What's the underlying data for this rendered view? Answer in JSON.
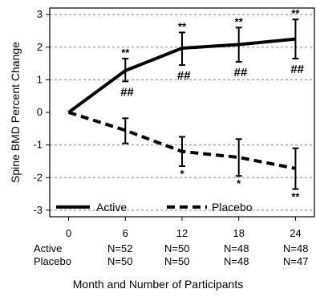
{
  "chart_data": {
    "type": "line",
    "ylabel": "Spine BMD Percent Change",
    "xlabel": "Month and Number of Participants",
    "x": [
      0,
      6,
      12,
      18,
      24
    ],
    "xticks": [
      "0",
      "6",
      "12",
      "18",
      "24"
    ],
    "yticks": [
      "3",
      "2",
      "1",
      "0",
      "-1",
      "-2",
      "-3"
    ],
    "ylim": [
      -3,
      3
    ],
    "grid": "horizontal dashed",
    "legend_position": "bottom",
    "series": [
      {
        "name": "Active",
        "style": "solid",
        "color": "#000000",
        "values": [
          0,
          1.28,
          1.97,
          2.08,
          2.25
        ],
        "err_low": [
          null,
          0.95,
          1.45,
          1.55,
          1.65
        ],
        "err_high": [
          null,
          1.65,
          2.45,
          2.6,
          2.85
        ],
        "sig_star": [
          null,
          "**",
          "**",
          "**",
          "**"
        ],
        "sig_hash": [
          null,
          "##",
          "##",
          "##",
          "##"
        ]
      },
      {
        "name": "Placebo",
        "style": "dashed",
        "color": "#000000",
        "values": [
          0,
          -0.55,
          -1.2,
          -1.38,
          -1.72
        ],
        "err_low": [
          null,
          -0.95,
          -1.65,
          -1.95,
          -2.35
        ],
        "err_high": [
          null,
          -0.18,
          -0.75,
          -0.82,
          -1.1
        ],
        "sig_star": [
          null,
          "",
          "*",
          "*",
          "**"
        ]
      }
    ]
  },
  "participants": {
    "rows": [
      {
        "label": "Active",
        "counts": [
          "N=52",
          "N=50",
          "N=48",
          "N=48"
        ]
      },
      {
        "label": "Placebo",
        "counts": [
          "N=50",
          "N=50",
          "N=48",
          "N=47"
        ]
      }
    ]
  }
}
